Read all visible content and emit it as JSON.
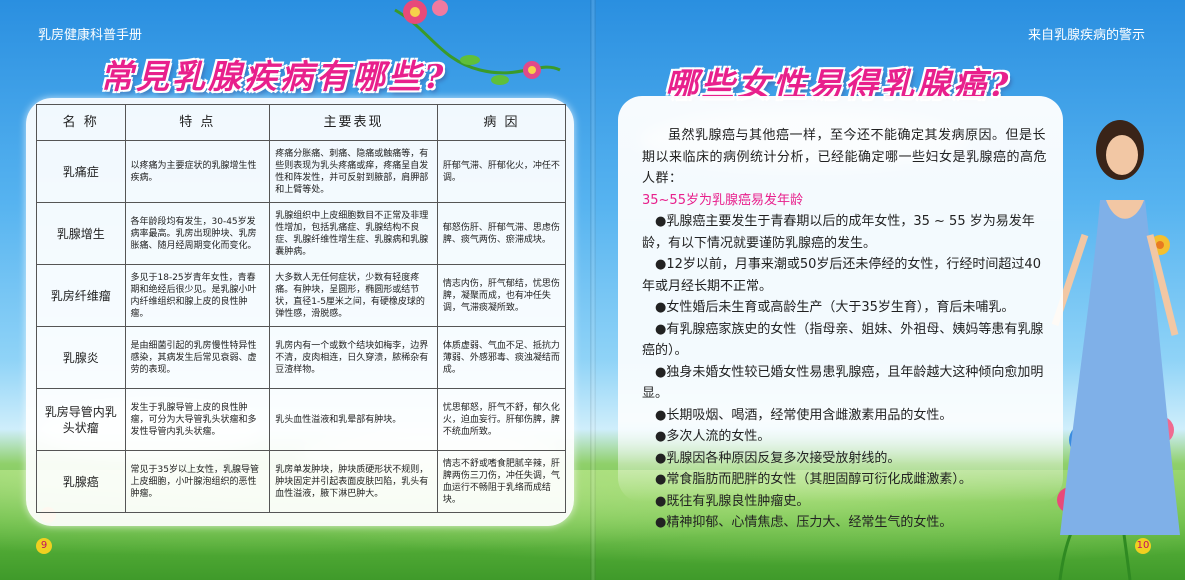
{
  "header": {
    "left_caption": "乳房健康科普手册",
    "right_caption": "来自乳腺疾病的警示"
  },
  "titles": {
    "left": "常見乳腺疾病有哪些?",
    "right": "哪些女性易得乳腺癌?"
  },
  "table": {
    "headers": [
      "名 称",
      "特 点",
      "主要表现",
      "病 因"
    ],
    "rows": [
      {
        "name": "乳痛症",
        "feature": "以疼痛为主要症状的乳腺增生性疾病。",
        "symptom": "疼痛分胀痛、刺痛、隐痛或触痛等，有些则表现为乳头疼痛或痒，疼痛呈自发性和阵发性，并可反射到腋部，肩胛部和上臂等处。",
        "cause": "肝郁气滞、肝郁化火，冲任不调。"
      },
      {
        "name": "乳腺增生",
        "feature": "各年龄段均有发生，30-45岁发病率最高。乳房出现肿块、乳房胀痛、随月经周期变化而变化。",
        "symptom": "乳腺组织中上皮细胞数目不正常及非理性增加，包括乳痛症、乳腺结构不良症、乳腺纤维性增生症、乳腺病和乳腺囊肿病。",
        "cause": "郁怒伤肝、肝郁气滞、思虑伤脾、痰气两伤、瘀滞成块。"
      },
      {
        "name": "乳房纤维瘤",
        "feature": "多见于18-25岁青年女性，青春期和绝经后很少见。是乳腺小叶内纤维组织和腺上皮的良性肿瘤。",
        "symptom": "大多数人无任何症状，少数有轻度疼痛。有肿块，呈圆形，椭圆形或结节状，直径1-5厘米之间，有硬橡皮球的弹性感，滑脱感。",
        "cause": "情志内伤，肝气郁结，忧思伤脾，凝聚而成，也有冲任失调，气滞痰凝所致。"
      },
      {
        "name": "乳腺炎",
        "feature": "是由细菌引起的乳房慢性特异性感染，其病发生后常见衰弱、虚劳的表现。",
        "symptom": "乳房内有一个或数个结块如梅李，边界不清，皮肉相连，日久穿溃，脓稀杂有豆渣样物。",
        "cause": "体质虚弱、气血不足、抵抗力薄弱、外感邪毒、痰浊凝结而成。"
      },
      {
        "name": "乳房导管内乳头状瘤",
        "feature": "发生于乳腺导管上皮的良性肿瘤，可分为大导管乳头状瘤和多发性导管内乳头状瘤。",
        "symptom": "乳头血性溢液和乳晕部有肿块。",
        "cause": "忧思郁怒，肝气不舒，郁久化火，迫血妄行。肝郁伤脾，脾不统血所致。"
      },
      {
        "name": "乳腺癌",
        "feature": "常见于35岁以上女性，乳腺导管上皮细胞，小叶腺泡组织的恶性肿瘤。",
        "symptom": "乳房单发肿块，肿块质硬形状不规则，肿块固定并引起表面皮肤凹陷，乳头有血性溢液，腋下淋巴肿大。",
        "cause": "情志不舒或嗜食肥腻辛辣，肝脾两伤三刀伤，冲任失调，气血运行不畅阻于乳络而成结块。"
      }
    ]
  },
  "article": {
    "intro": "虽然乳腺癌与其他癌一样，至今还不能确定其发病原因。但是长期以来临床的病例统计分析，已经能确定哪一些妇女是乳腺癌的高危人群：",
    "subtitle": "35~55岁为乳腺癌易发年龄",
    "bullets": [
      "●乳腺癌主要发生于青春期以后的成年女性，35 ~ 55 岁为易发年龄，有以下情况就要谨防乳腺癌的发生。",
      "●12岁以前，月事来潮或50岁后还未停经的女性，行经时间超过40年或月经长期不正常。",
      "●女性婚后未生育或高龄生产（大于35岁生育），育后未哺乳。",
      "●有乳腺癌家族史的女性（指母亲、姐妹、外祖母、姨妈等患有乳腺癌的）。",
      "●独身未婚女性较已婚女性易患乳腺癌，且年龄越大这种倾向愈加明显。",
      "●长期吸烟、喝酒，经常使用含雌激素用品的女性。",
      "●多次人流的女性。",
      "●乳腺因各种原因反复多次接受放射线的。",
      "●常食脂肪而肥胖的女性（其胆固醇可衍化成雌激素）。",
      "●既往有乳腺良性肿瘤史。",
      "●精神抑郁、心情焦虑、压力大、经常生气的女性。"
    ]
  },
  "page_numbers": {
    "left": "9",
    "right": "10"
  },
  "colors": {
    "title_pink": "#e8208c",
    "sky_blue": "#2a8fe0",
    "grass_green": "#4fae35"
  }
}
